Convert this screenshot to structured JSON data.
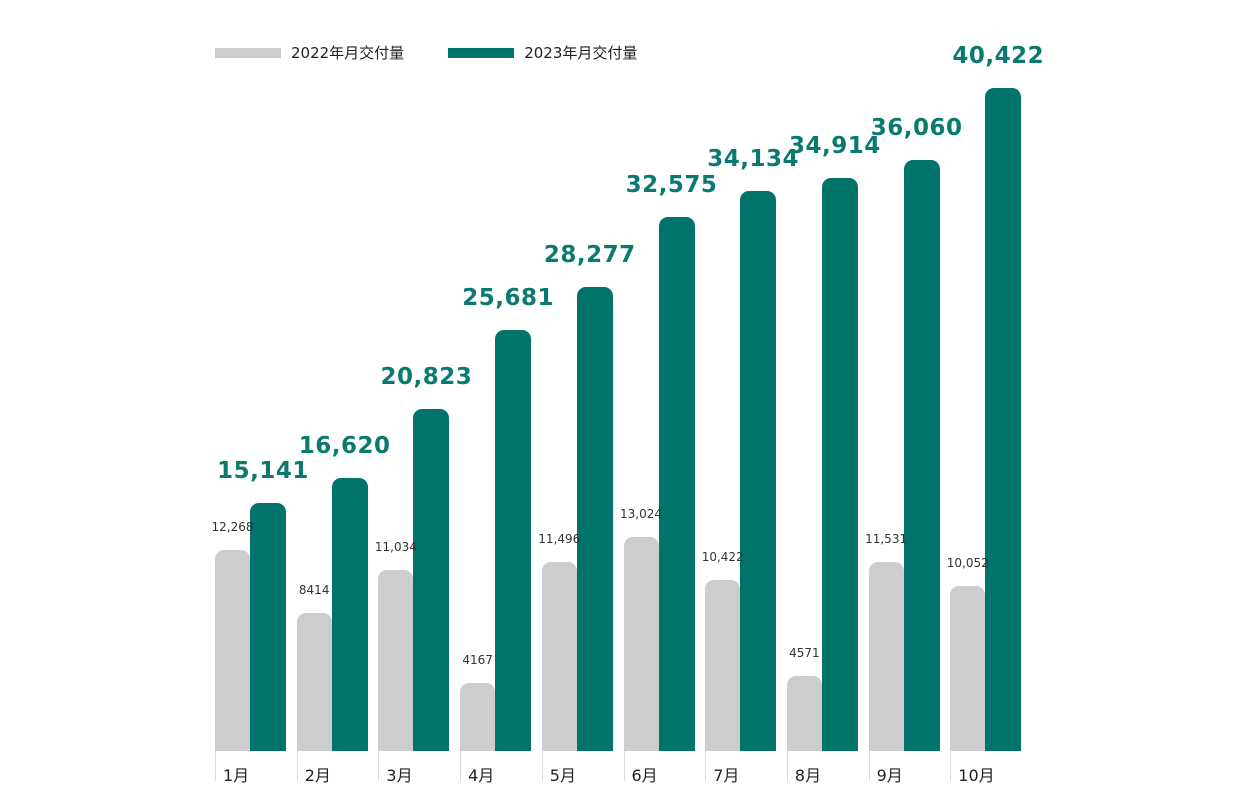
{
  "colors": {
    "series_2022": "#cdcdcd",
    "series_2023": "#00736a",
    "label_2023": "#0b7a6e"
  },
  "legend": [
    {
      "label": "2022年月交付量"
    },
    {
      "label": "2023年月交付量"
    }
  ],
  "groups": [
    {
      "month": "1月",
      "v2022": "12,268",
      "v2023": "15,141"
    },
    {
      "month": "2月",
      "v2022": "8414",
      "v2023": "16,620"
    },
    {
      "month": "3月",
      "v2022": "11,034",
      "v2023": "20,823"
    },
    {
      "month": "4月",
      "v2022": "4167",
      "v2023": "25,681"
    },
    {
      "month": "5月",
      "v2022": "11,496",
      "v2023": "28,277"
    },
    {
      "month": "6月",
      "v2022": "13,024",
      "v2023": "32,575"
    },
    {
      "month": "7月",
      "v2022": "10,422",
      "v2023": "34,134"
    },
    {
      "month": "8月",
      "v2022": "4571",
      "v2023": "34,914"
    },
    {
      "month": "9月",
      "v2022": "11,531",
      "v2023": "36,060"
    },
    {
      "month": "10月",
      "v2022": "10,052",
      "v2023": "40,422"
    }
  ],
  "chart_data": {
    "type": "bar",
    "title": "",
    "xlabel": "",
    "ylabel": "",
    "categories": [
      "1月",
      "2月",
      "3月",
      "4月",
      "5月",
      "6月",
      "7月",
      "8月",
      "9月",
      "10月"
    ],
    "series": [
      {
        "name": "2022年月交付量",
        "color": "#cdcdcd",
        "values": [
          12268,
          8414,
          11034,
          4167,
          11496,
          13024,
          10422,
          4571,
          11531,
          10052
        ]
      },
      {
        "name": "2023年月交付量",
        "color": "#00736a",
        "values": [
          15141,
          16620,
          20823,
          25681,
          28277,
          32575,
          34134,
          34914,
          36060,
          40422
        ]
      }
    ],
    "ylim": [
      0,
      42000
    ],
    "grid": false,
    "legend_position": "top-left",
    "data_labels": true
  }
}
